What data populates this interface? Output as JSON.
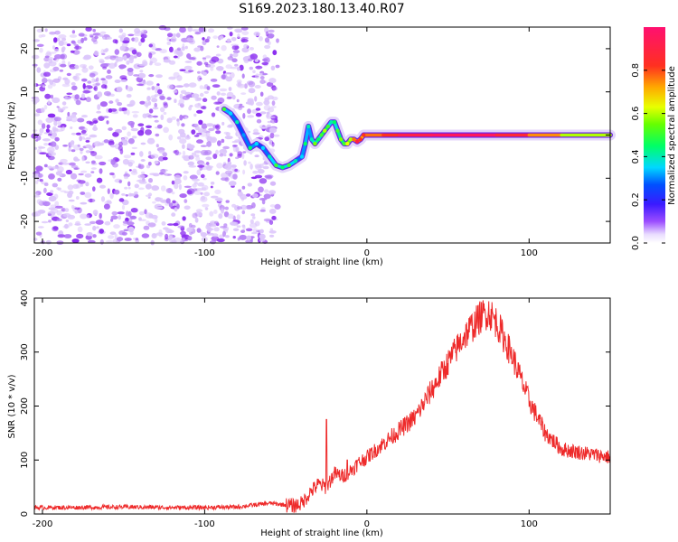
{
  "title": "S169.2023.180.13.40.R07",
  "colors": {
    "snr_line": "#ee2a2a",
    "axis": "#000000",
    "background": "#ffffff"
  },
  "chart_data": [
    {
      "type": "heatmap",
      "xlabel": "Height of straight line (km)",
      "ylabel": "Frequency (Hz)",
      "xlim": [
        -205,
        150
      ],
      "ylim": [
        -25,
        25
      ],
      "xticks": [
        -200,
        -100,
        0,
        100
      ],
      "yticks": [
        -20,
        -10,
        0,
        10,
        20
      ],
      "colorbar": {
        "label": "Normalized spectral amplitude",
        "range": [
          0,
          1
        ],
        "ticks": [
          0.0,
          0.2,
          0.4,
          0.6,
          0.8
        ],
        "colormap": "rainbow"
      },
      "noise_region": {
        "x_range": [
          -205,
          -55
        ],
        "y_range": [
          -25,
          25
        ]
      },
      "signal_track": {
        "x": [
          -88,
          -84,
          -80,
          -76,
          -72,
          -68,
          -64,
          -60,
          -56,
          -52,
          -48,
          -44,
          -40,
          -38,
          -36,
          -34,
          -32,
          -30,
          -28,
          -26,
          -24,
          -22,
          -20,
          -18,
          -16,
          -14,
          -12,
          -10,
          -8,
          -6,
          -4,
          -2,
          0,
          10,
          20,
          40,
          60,
          80,
          100,
          120,
          150
        ],
        "frequency": [
          6,
          5,
          3,
          0,
          -3,
          -2,
          -3,
          -5,
          -7,
          -7.5,
          -7,
          -6,
          -5,
          -2,
          2,
          -1,
          -2,
          -1,
          0,
          1,
          2,
          3,
          3,
          1,
          -1,
          -2,
          -2,
          -1,
          -1,
          -1.5,
          -1,
          0,
          0,
          0,
          0,
          0,
          0,
          0,
          0,
          0,
          0
        ],
        "amplitude": [
          0.45,
          0.3,
          0.35,
          0.25,
          0.4,
          0.3,
          0.3,
          0.35,
          0.45,
          0.4,
          0.45,
          0.35,
          0.3,
          0.4,
          0.35,
          0.35,
          0.5,
          0.4,
          0.45,
          0.55,
          0.45,
          0.35,
          0.4,
          0.45,
          0.5,
          0.45,
          0.6,
          0.55,
          0.75,
          0.85,
          0.8,
          0.8,
          0.85,
          0.85,
          0.95,
          0.95,
          1.0,
          0.95,
          0.9,
          0.75,
          0.55
        ]
      }
    },
    {
      "type": "line",
      "xlabel": "Height of straight line (km)",
      "ylabel": "SNR (10 * v/v)",
      "xlim": [
        -205,
        150
      ],
      "ylim": [
        0,
        400
      ],
      "xticks": [
        -200,
        -100,
        0,
        100
      ],
      "yticks": [
        0,
        100,
        200,
        300,
        400
      ],
      "series": [
        {
          "x": [
            -205,
            -180,
            -150,
            -120,
            -100,
            -80,
            -60,
            -45,
            -40,
            -35,
            -30,
            -25,
            -20,
            -15,
            -10,
            -5,
            0,
            10,
            20,
            30,
            40,
            50,
            60,
            70,
            75,
            80,
            90,
            100,
            110,
            120,
            130,
            140,
            150
          ],
          "y": [
            12,
            12,
            13,
            12,
            12,
            13,
            20,
            15,
            20,
            40,
            55,
            50,
            75,
            70,
            80,
            95,
            105,
            130,
            155,
            180,
            230,
            280,
            330,
            365,
            375,
            355,
            290,
            210,
            150,
            120,
            115,
            110,
            105
          ]
        }
      ],
      "spikes": [
        {
          "x": -25,
          "y": 175
        },
        {
          "x": -12,
          "y": 100
        }
      ]
    }
  ]
}
